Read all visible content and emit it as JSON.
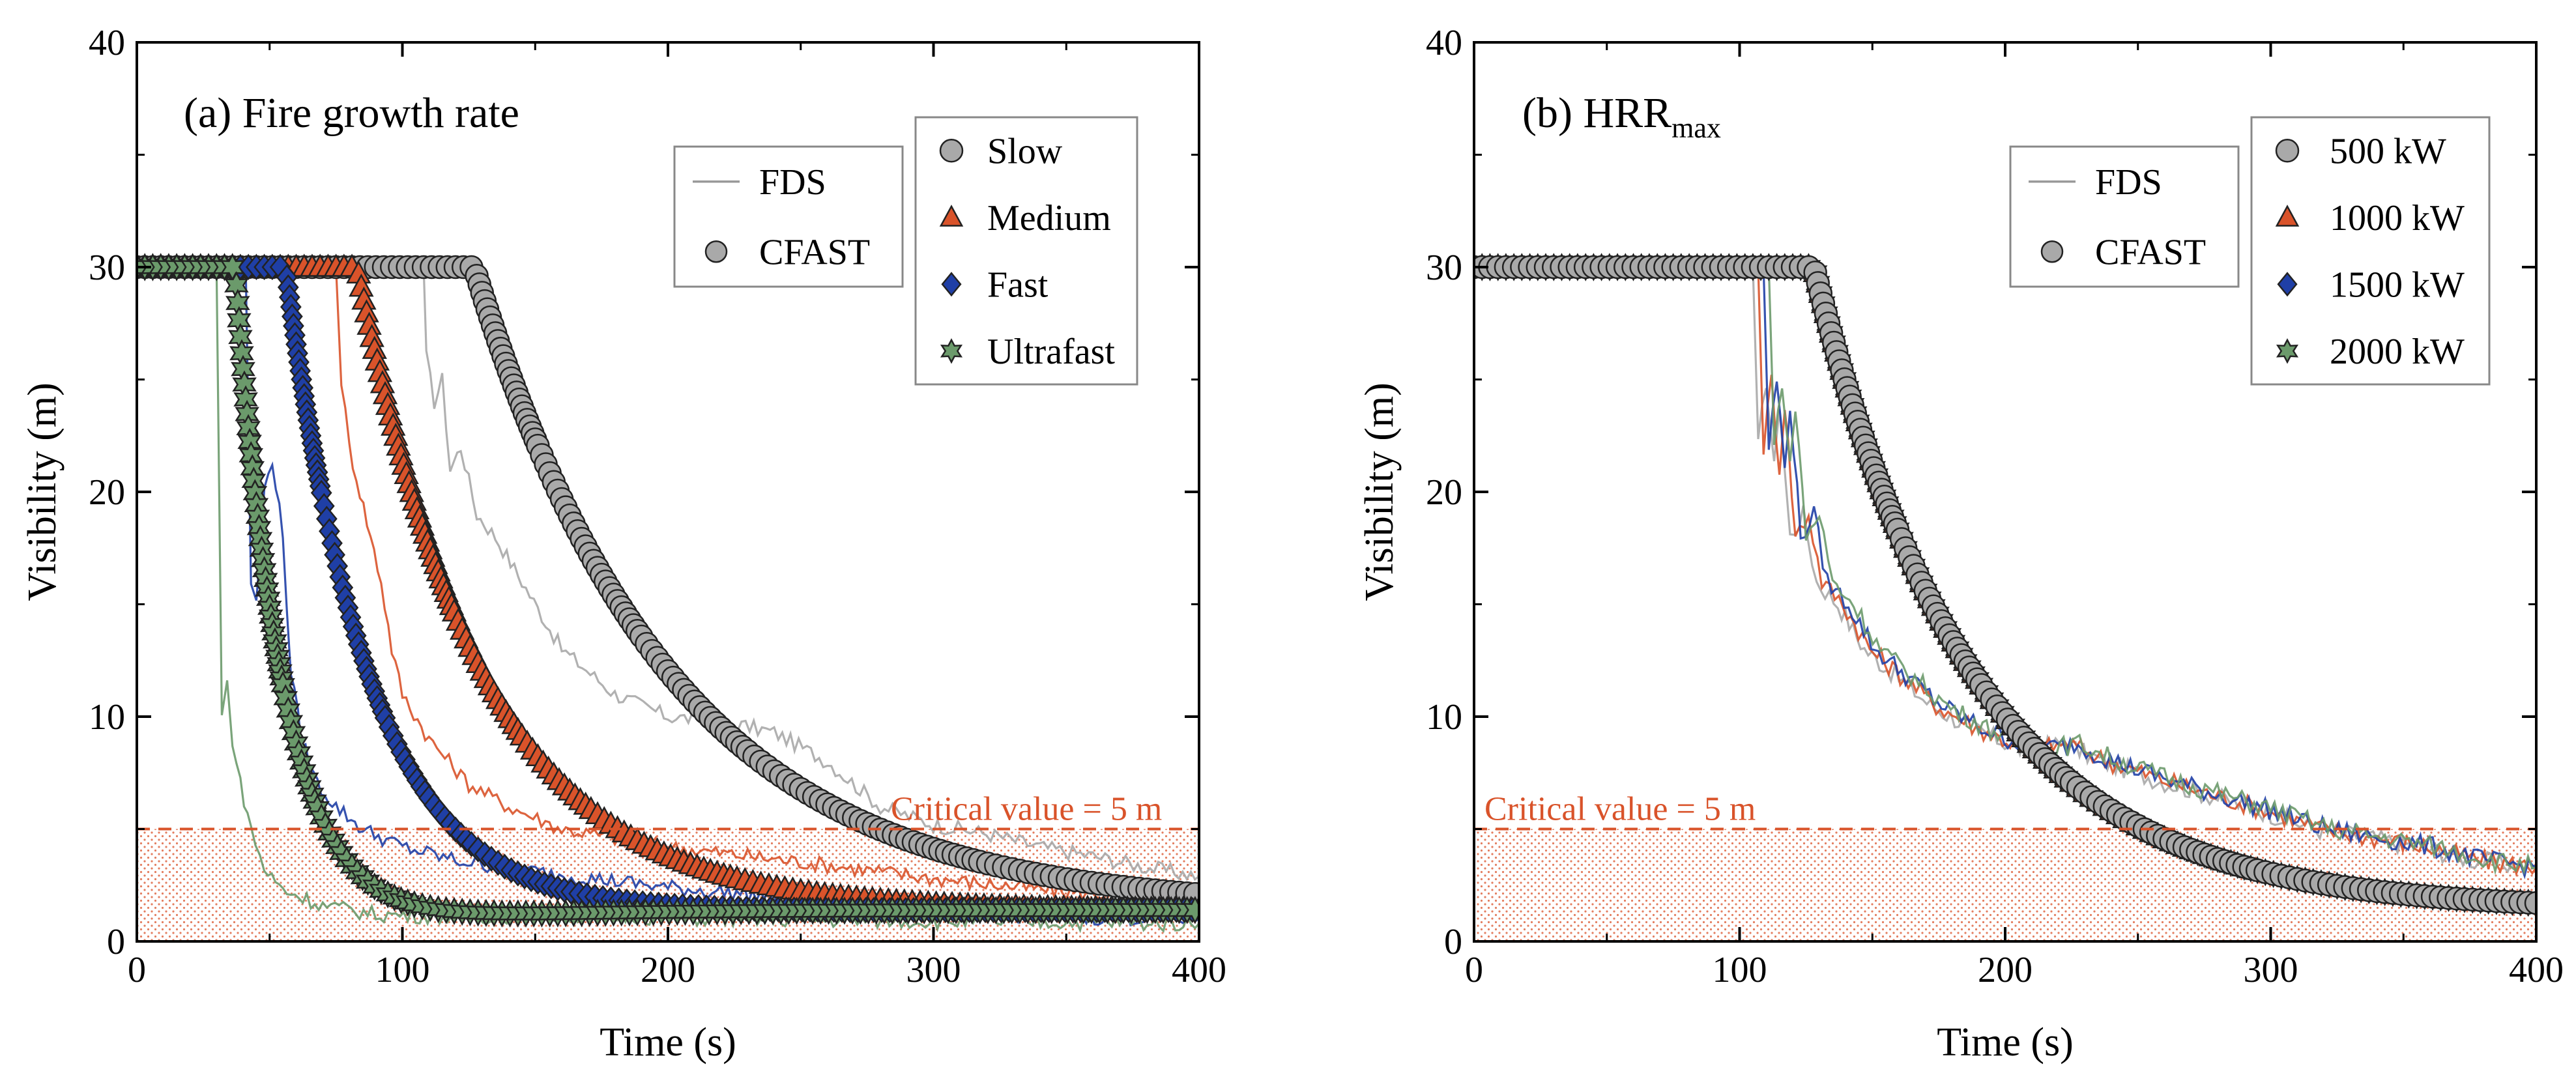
{
  "chart_data": [
    {
      "type": "line",
      "panel": "a",
      "title": "(a) Fire growth rate",
      "xlabel": "Time (s)",
      "ylabel": "Visibility (m)",
      "xlim": [
        0,
        400
      ],
      "ylim": [
        0,
        40
      ],
      "xticks": [
        0,
        100,
        200,
        300,
        400
      ],
      "yticks": [
        0,
        10,
        20,
        30,
        40
      ],
      "xtick_labels": [
        "0",
        "100",
        "200",
        "300",
        "400"
      ],
      "ytick_labels": [
        "0",
        "10",
        "20",
        "30",
        "40"
      ],
      "critical_value": 5,
      "critical_label": "Critical value = 5 m",
      "source_legend": [
        {
          "label": "FDS",
          "style": "line"
        },
        {
          "label": "CFAST",
          "style": "marker"
        }
      ],
      "legend_position": "top-right",
      "series": [
        {
          "name": "Slow",
          "color": "#a9a9a9",
          "marker": "circle",
          "cfast_onset": 127,
          "cfast_tau": 73,
          "fds_points": [
            [
              0,
              30
            ],
            [
              108,
              30
            ],
            [
              109,
              26
            ],
            [
              112,
              24
            ],
            [
              115,
              25
            ],
            [
              118,
              21
            ],
            [
              122,
              22
            ],
            [
              128,
              19
            ],
            [
              135,
              18
            ],
            [
              145,
              16
            ],
            [
              160,
              13
            ],
            [
              180,
              11
            ],
            [
              200,
              10
            ],
            [
              220,
              9.8
            ],
            [
              240,
              9.3
            ],
            [
              260,
              8
            ],
            [
              280,
              6
            ],
            [
              300,
              5.2
            ],
            [
              320,
              4.8
            ],
            [
              340,
              4.2
            ],
            [
              360,
              3.8
            ],
            [
              380,
              3.3
            ],
            [
              400,
              2.9
            ]
          ]
        },
        {
          "name": "Medium",
          "color": "#d9532a",
          "marker": "triangle",
          "cfast_onset": 83,
          "cfast_tau": 48,
          "fds_points": [
            [
              0,
              30
            ],
            [
              75,
              30
            ],
            [
              77,
              25
            ],
            [
              80,
              22
            ],
            [
              84,
              20
            ],
            [
              88,
              18
            ],
            [
              92,
              16
            ],
            [
              96,
              13
            ],
            [
              100,
              11
            ],
            [
              110,
              9
            ],
            [
              125,
              7
            ],
            [
              140,
              6
            ],
            [
              160,
              5
            ],
            [
              180,
              4.6
            ],
            [
              200,
              4.2
            ],
            [
              230,
              3.8
            ],
            [
              260,
              3.4
            ],
            [
              300,
              2.8
            ],
            [
              350,
              2.2
            ],
            [
              400,
              1.8
            ]
          ]
        },
        {
          "name": "Fast",
          "color": "#1f3fa6",
          "marker": "diamond",
          "cfast_onset": 56,
          "cfast_tau": 32,
          "fds_points": [
            [
              0,
              30
            ],
            [
              41,
              30
            ],
            [
              43,
              16
            ],
            [
              45,
              15
            ],
            [
              48,
              20
            ],
            [
              51,
              21.5
            ],
            [
              55,
              18
            ],
            [
              58,
              12
            ],
            [
              62,
              9
            ],
            [
              68,
              7
            ],
            [
              75,
              6
            ],
            [
              85,
              5
            ],
            [
              100,
              4.2
            ],
            [
              120,
              3.6
            ],
            [
              150,
              3.1
            ],
            [
              200,
              2.4
            ],
            [
              250,
              1.9
            ],
            [
              300,
              1.4
            ],
            [
              350,
              1.1
            ],
            [
              400,
              1.0
            ]
          ]
        },
        {
          "name": "Ultrafast",
          "color": "#6b9a6b",
          "marker": "star",
          "cfast_onset": 37,
          "cfast_tau": 18,
          "fds_points": [
            [
              0,
              30
            ],
            [
              30,
              30
            ],
            [
              32,
              10
            ],
            [
              34,
              11.5
            ],
            [
              36,
              9
            ],
            [
              39,
              7
            ],
            [
              43,
              5
            ],
            [
              48,
              3.2
            ],
            [
              55,
              2.3
            ],
            [
              70,
              1.6
            ],
            [
              90,
              1.2
            ],
            [
              120,
              1.1
            ],
            [
              160,
              1.2
            ],
            [
              220,
              1.0
            ],
            [
              300,
              0.9
            ],
            [
              400,
              0.8
            ]
          ]
        }
      ]
    },
    {
      "type": "line",
      "panel": "b",
      "title": "(b) HRR",
      "title_subscript": "max",
      "xlabel": "Time (s)",
      "ylabel": "Visibility (m)",
      "xlim": [
        0,
        400
      ],
      "ylim": [
        0,
        40
      ],
      "xticks": [
        0,
        100,
        200,
        300,
        400
      ],
      "yticks": [
        0,
        10,
        20,
        30,
        40
      ],
      "xtick_labels": [
        "0",
        "100",
        "200",
        "300",
        "400"
      ],
      "ytick_labels": [
        "0",
        "10",
        "20",
        "30",
        "40"
      ],
      "critical_value": 5,
      "critical_label": "Critical value = 5 m",
      "source_legend": [
        {
          "label": "FDS",
          "style": "line"
        },
        {
          "label": "CFAST",
          "style": "marker"
        }
      ],
      "legend_position": "top-right",
      "series": [
        {
          "name": "500 kW",
          "color": "#a9a9a9",
          "marker": "circle",
          "cfast_onset": 128,
          "cfast_tau": 60
        },
        {
          "name": "1000 kW",
          "color": "#d9532a",
          "marker": "triangle",
          "cfast_onset": 128,
          "cfast_tau": 60
        },
        {
          "name": "1500 kW",
          "color": "#1f3fa6",
          "marker": "diamond",
          "cfast_onset": 128,
          "cfast_tau": 60
        },
        {
          "name": "2000 kW",
          "color": "#6b9a6b",
          "marker": "star",
          "cfast_onset": 128,
          "cfast_tau": 60
        }
      ],
      "fds_points": [
        [
          0,
          30
        ],
        [
          108,
          30
        ],
        [
          110,
          22
        ],
        [
          113,
          25
        ],
        [
          116,
          21
        ],
        [
          118,
          24
        ],
        [
          122,
          18
        ],
        [
          127,
          19
        ],
        [
          132,
          16
        ],
        [
          140,
          15
        ],
        [
          150,
          13
        ],
        [
          160,
          12
        ],
        [
          175,
          10.5
        ],
        [
          190,
          9.5
        ],
        [
          200,
          9
        ],
        [
          210,
          8.5
        ],
        [
          225,
          8.8
        ],
        [
          240,
          8
        ],
        [
          260,
          7.2
        ],
        [
          280,
          6.5
        ],
        [
          300,
          5.8
        ],
        [
          320,
          5
        ],
        [
          340,
          4.6
        ],
        [
          360,
          4.2
        ],
        [
          380,
          3.6
        ],
        [
          400,
          3.3
        ]
      ]
    }
  ]
}
